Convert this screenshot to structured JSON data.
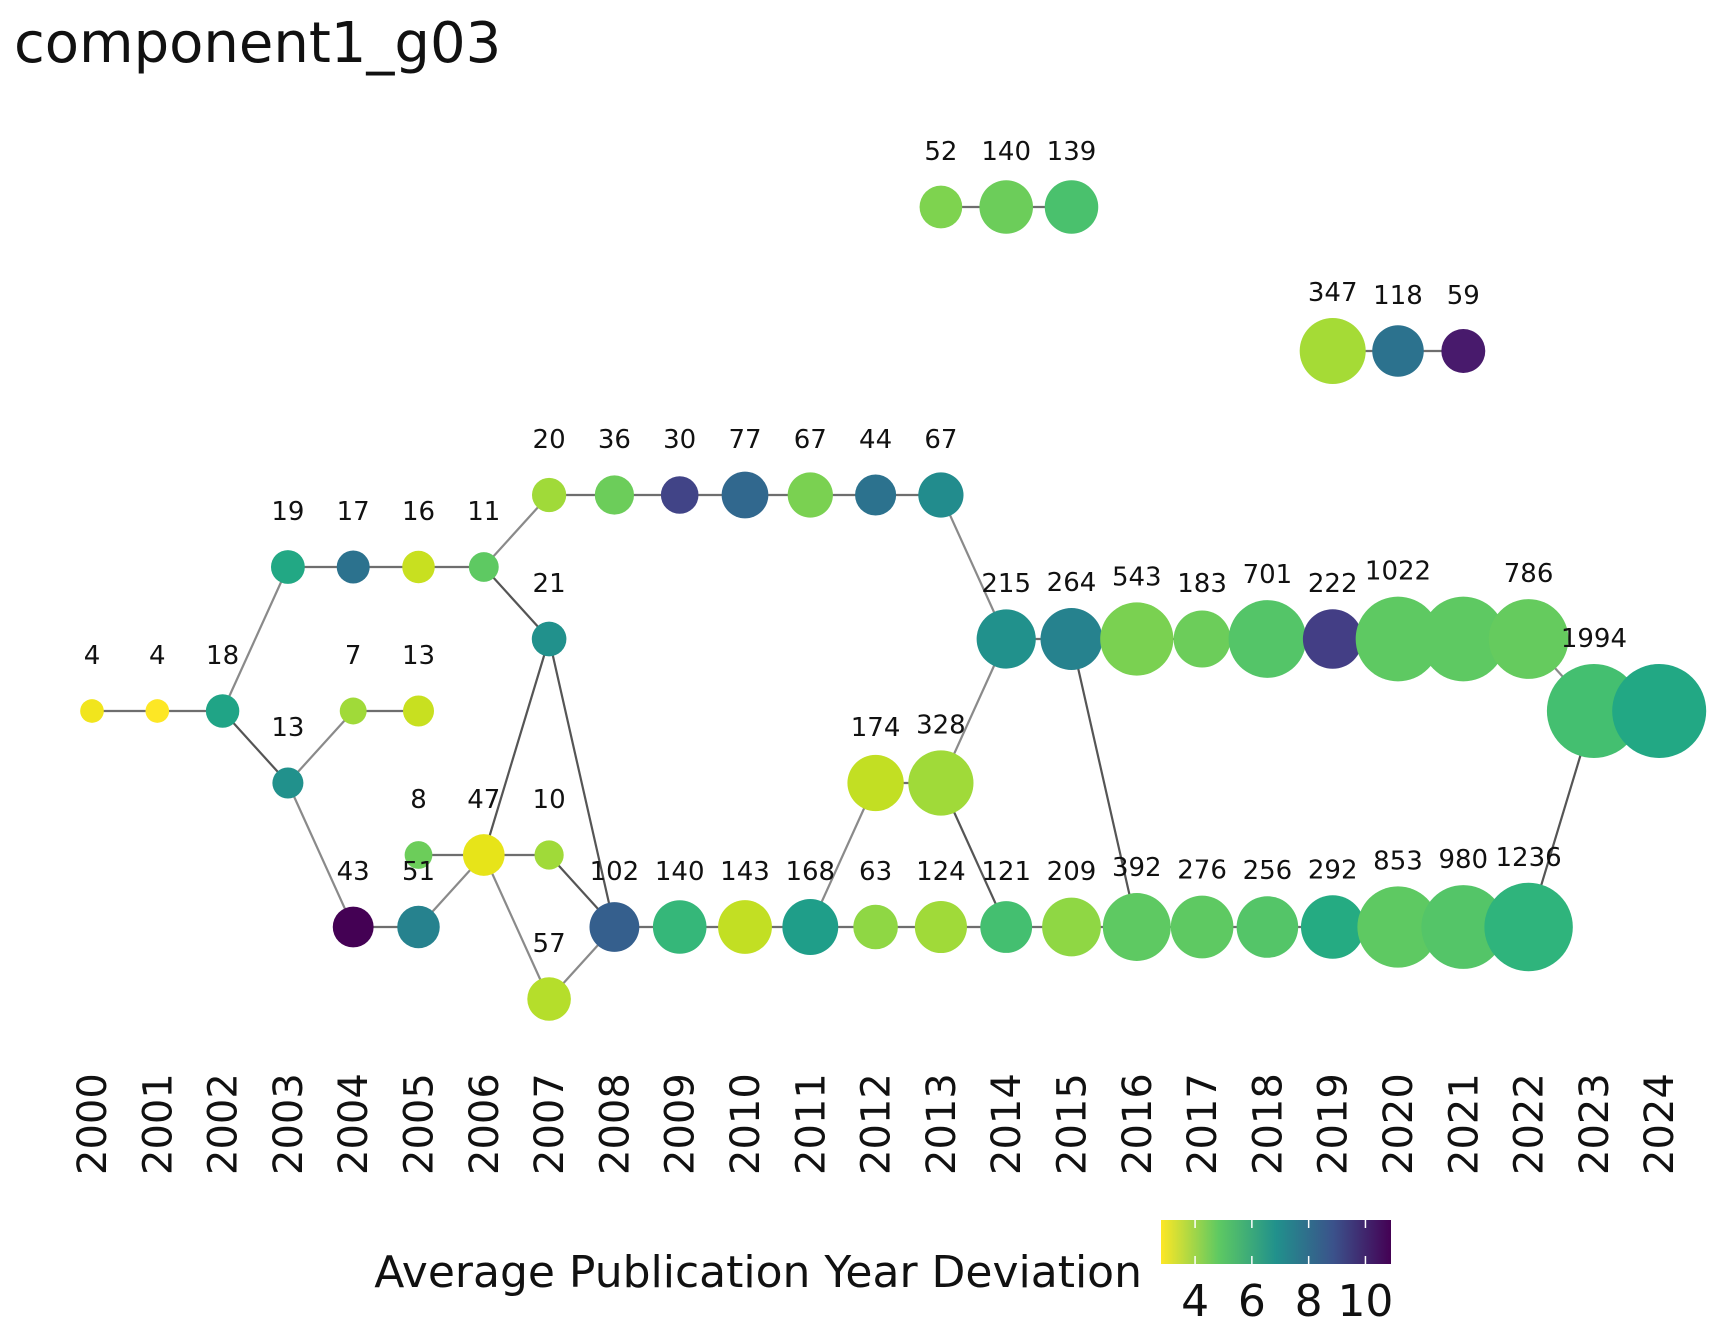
{
  "title": "component1_g03",
  "legend": {
    "title": "Average Publication Year Deviation",
    "ticks": [
      {
        "value": 4,
        "label": "4"
      },
      {
        "value": 6,
        "label": "6"
      },
      {
        "value": 8,
        "label": "8"
      },
      {
        "value": 10,
        "label": "10"
      }
    ],
    "range": [
      2.8,
      10.9
    ]
  },
  "palette": [
    "#fde725",
    "#5ec962",
    "#21918c",
    "#3b528b",
    "#440154"
  ],
  "years": [
    "2000",
    "2001",
    "2002",
    "2003",
    "2004",
    "2005",
    "2006",
    "2007",
    "2008",
    "2009",
    "2010",
    "2011",
    "2012",
    "2013",
    "2014",
    "2015",
    "2016",
    "2017",
    "2018",
    "2019",
    "2020",
    "2021",
    "2022",
    "2023",
    "2024"
  ],
  "rows": [
    "r1",
    "r2",
    "r3",
    "r4",
    "r5",
    "r6",
    "r7",
    "r8",
    "r9",
    "r10",
    "r11",
    "r12"
  ],
  "nodes": [
    {
      "id": "n2013a",
      "year": 2013,
      "row": "r1",
      "count": 52,
      "label": "52",
      "color": "#7ed34f"
    },
    {
      "id": "n2014a",
      "year": 2014,
      "row": "r1",
      "count": 140,
      "label": "140",
      "color": "#6ccd5a"
    },
    {
      "id": "n2015a",
      "year": 2015,
      "row": "r1",
      "count": 139,
      "label": "139",
      "color": "#4ac16d"
    },
    {
      "id": "n2019b",
      "year": 2019,
      "row": "r2",
      "count": 347,
      "label": "347",
      "color": "#a5db36"
    },
    {
      "id": "n2020b",
      "year": 2020,
      "row": "r2",
      "count": 118,
      "label": "118",
      "color": "#2c728e"
    },
    {
      "id": "n2021b",
      "year": 2021,
      "row": "r2",
      "count": 59,
      "label": "59",
      "color": "#481a6c"
    },
    {
      "id": "n2007c",
      "year": 2007,
      "row": "r3",
      "count": 20,
      "label": "20",
      "color": "#a0da39"
    },
    {
      "id": "n2008c",
      "year": 2008,
      "row": "r3",
      "count": 36,
      "label": "36",
      "color": "#6ccd5a"
    },
    {
      "id": "n2009c",
      "year": 2009,
      "row": "r3",
      "count": 30,
      "label": "30",
      "color": "#414487"
    },
    {
      "id": "n2010c",
      "year": 2010,
      "row": "r3",
      "count": 77,
      "label": "77",
      "color": "#31688e"
    },
    {
      "id": "n2011c",
      "year": 2011,
      "row": "r3",
      "count": 67,
      "label": "67",
      "color": "#7ad151"
    },
    {
      "id": "n2012c",
      "year": 2012,
      "row": "r3",
      "count": 44,
      "label": "44",
      "color": "#2c728e"
    },
    {
      "id": "n2013c",
      "year": 2013,
      "row": "r3",
      "count": 67,
      "label": "67",
      "color": "#228c8d"
    },
    {
      "id": "n2003d",
      "year": 2003,
      "row": "r4",
      "count": 19,
      "label": "19",
      "color": "#22a884"
    },
    {
      "id": "n2004d",
      "year": 2004,
      "row": "r4",
      "count": 17,
      "label": "17",
      "color": "#2c728e"
    },
    {
      "id": "n2005d",
      "year": 2005,
      "row": "r4",
      "count": 16,
      "label": "16",
      "color": "#c8e020"
    },
    {
      "id": "n2006d",
      "year": 2006,
      "row": "r4",
      "count": 11,
      "label": "11",
      "color": "#5ec962"
    },
    {
      "id": "n2007e",
      "year": 2007,
      "row": "r5",
      "count": 21,
      "label": "21",
      "color": "#21918c"
    },
    {
      "id": "n2014e",
      "year": 2014,
      "row": "r5",
      "count": 215,
      "label": "215",
      "color": "#21918c"
    },
    {
      "id": "n2015e",
      "year": 2015,
      "row": "r5",
      "count": 264,
      "label": "264",
      "color": "#26828e"
    },
    {
      "id": "n2016e",
      "year": 2016,
      "row": "r5",
      "count": 543,
      "label": "543",
      "color": "#7ad151"
    },
    {
      "id": "n2017e",
      "year": 2017,
      "row": "r5",
      "count": 183,
      "label": "183",
      "color": "#6ccd5a"
    },
    {
      "id": "n2018e",
      "year": 2018,
      "row": "r5",
      "count": 701,
      "label": "701",
      "color": "#54c568"
    },
    {
      "id": "n2019e",
      "year": 2019,
      "row": "r5",
      "count": 222,
      "label": "222",
      "color": "#433e85"
    },
    {
      "id": "n2020e",
      "year": 2020,
      "row": "r5",
      "count": 1022,
      "label": "1022",
      "color": "#5ec962"
    },
    {
      "id": "n2021e",
      "year": 2021,
      "row": "r5",
      "count": 1022,
      "label": "",
      "color": "#5ec962"
    },
    {
      "id": "n2022e",
      "year": 2022,
      "row": "r5",
      "count": 786,
      "label": "786",
      "color": "#65cb5e"
    },
    {
      "id": "n2000f",
      "year": 2000,
      "row": "r6",
      "count": 4,
      "label": "4",
      "color": "#f1e51d"
    },
    {
      "id": "n2001f",
      "year": 2001,
      "row": "r6",
      "count": 4,
      "label": "4",
      "color": "#fde725"
    },
    {
      "id": "n2002f",
      "year": 2002,
      "row": "r6",
      "count": 18,
      "label": "18",
      "color": "#20a486"
    },
    {
      "id": "n2004f",
      "year": 2004,
      "row": "r6",
      "count": 7,
      "label": "7",
      "color": "#a0da39"
    },
    {
      "id": "n2005f",
      "year": 2005,
      "row": "r6",
      "count": 13,
      "label": "13",
      "color": "#c8e020"
    },
    {
      "id": "n2023f",
      "year": 2023,
      "row": "r6",
      "count": 1994,
      "label": "1994",
      "color": "#44bf70"
    },
    {
      "id": "n2024f",
      "year": 2024,
      "row": "r6",
      "count": 1994,
      "label": "",
      "color": "#22a884"
    },
    {
      "id": "n2003g",
      "year": 2003,
      "row": "r7",
      "count": 13,
      "label": "13",
      "color": "#21918c"
    },
    {
      "id": "n2012g",
      "year": 2012,
      "row": "r7",
      "count": 174,
      "label": "174",
      "color": "#c2df23"
    },
    {
      "id": "n2013g",
      "year": 2013,
      "row": "r7",
      "count": 328,
      "label": "328",
      "color": "#a0da39"
    },
    {
      "id": "n2005h",
      "year": 2005,
      "row": "r8",
      "count": 8,
      "label": "8",
      "color": "#6ccd5a"
    },
    {
      "id": "n2006h",
      "year": 2006,
      "row": "r8",
      "count": 47,
      "label": "47",
      "color": "#e7e419"
    },
    {
      "id": "n2007h",
      "year": 2007,
      "row": "r8",
      "count": 10,
      "label": "10",
      "color": "#a0da39"
    },
    {
      "id": "n2004i",
      "year": 2004,
      "row": "r9",
      "count": 43,
      "label": "43",
      "color": "#440154"
    },
    {
      "id": "n2005i",
      "year": 2005,
      "row": "r9",
      "count": 51,
      "label": "51",
      "color": "#26828e"
    },
    {
      "id": "n2008i",
      "year": 2008,
      "row": "r9",
      "count": 102,
      "label": "102",
      "color": "#355f8d"
    },
    {
      "id": "n2009i",
      "year": 2009,
      "row": "r9",
      "count": 140,
      "label": "140",
      "color": "#35b779"
    },
    {
      "id": "n2010i",
      "year": 2010,
      "row": "r9",
      "count": 143,
      "label": "143",
      "color": "#c2df23"
    },
    {
      "id": "n2011i",
      "year": 2011,
      "row": "r9",
      "count": 168,
      "label": "168",
      "color": "#1f9e89"
    },
    {
      "id": "n2012i",
      "year": 2012,
      "row": "r9",
      "count": 63,
      "label": "63",
      "color": "#8fd744"
    },
    {
      "id": "n2013i",
      "year": 2013,
      "row": "r9",
      "count": 124,
      "label": "124",
      "color": "#a0da39"
    },
    {
      "id": "n2014i",
      "year": 2014,
      "row": "r9",
      "count": 121,
      "label": "121",
      "color": "#44bf70"
    },
    {
      "id": "n2015i",
      "year": 2015,
      "row": "r9",
      "count": 209,
      "label": "209",
      "color": "#8fd744"
    },
    {
      "id": "n2016i",
      "year": 2016,
      "row": "r9",
      "count": 392,
      "label": "392",
      "color": "#5ec962"
    },
    {
      "id": "n2017i",
      "year": 2017,
      "row": "r9",
      "count": 276,
      "label": "276",
      "color": "#5ec962"
    },
    {
      "id": "n2018i",
      "year": 2018,
      "row": "r9",
      "count": 256,
      "label": "256",
      "color": "#54c568"
    },
    {
      "id": "n2019i",
      "year": 2019,
      "row": "r9",
      "count": 292,
      "label": "292",
      "color": "#25ab82"
    },
    {
      "id": "n2020i",
      "year": 2020,
      "row": "r9",
      "count": 853,
      "label": "853",
      "color": "#5ec962"
    },
    {
      "id": "n2021i",
      "year": 2021,
      "row": "r9",
      "count": 980,
      "label": "980",
      "color": "#54c568"
    },
    {
      "id": "n2022i",
      "year": 2022,
      "row": "r9",
      "count": 1236,
      "label": "1236",
      "color": "#2fb47c"
    },
    {
      "id": "n2007j",
      "year": 2007,
      "row": "r10",
      "count": 57,
      "label": "57",
      "color": "#b5de2b"
    }
  ],
  "edges": [
    [
      "n2013a",
      "n2014a"
    ],
    [
      "n2014a",
      "n2015a"
    ],
    [
      "n2019b",
      "n2020b"
    ],
    [
      "n2020b",
      "n2021b"
    ],
    [
      "n2007c",
      "n2008c"
    ],
    [
      "n2008c",
      "n2009c"
    ],
    [
      "n2009c",
      "n2010c"
    ],
    [
      "n2010c",
      "n2011c"
    ],
    [
      "n2011c",
      "n2012c"
    ],
    [
      "n2012c",
      "n2013c"
    ],
    [
      "n2003d",
      "n2004d"
    ],
    [
      "n2004d",
      "n2005d"
    ],
    [
      "n2005d",
      "n2006d"
    ],
    [
      "n2006d",
      "n2007c"
    ],
    [
      "n2006d",
      "n2007e"
    ],
    [
      "n2002f",
      "n2003d"
    ],
    [
      "n2002f",
      "n2003g"
    ],
    [
      "n2000f",
      "n2001f"
    ],
    [
      "n2001f",
      "n2002f"
    ],
    [
      "n2003g",
      "n2004f"
    ],
    [
      "n2004f",
      "n2005f"
    ],
    [
      "n2003g",
      "n2004i"
    ],
    [
      "n2004i",
      "n2005i"
    ],
    [
      "n2005i",
      "n2006h"
    ],
    [
      "n2005h",
      "n2006h"
    ],
    [
      "n2006h",
      "n2007h"
    ],
    [
      "n2006h",
      "n2007e"
    ],
    [
      "n2006h",
      "n2007j"
    ],
    [
      "n2007h",
      "n2008i"
    ],
    [
      "n2007j",
      "n2008i"
    ],
    [
      "n2007e",
      "n2008i"
    ],
    [
      "n2008i",
      "n2009i"
    ],
    [
      "n2009i",
      "n2010i"
    ],
    [
      "n2010i",
      "n2011i"
    ],
    [
      "n2011i",
      "n2012i"
    ],
    [
      "n2012i",
      "n2013i"
    ],
    [
      "n2013i",
      "n2014i"
    ],
    [
      "n2014i",
      "n2015i"
    ],
    [
      "n2015i",
      "n2016i"
    ],
    [
      "n2016i",
      "n2017i"
    ],
    [
      "n2017i",
      "n2018i"
    ],
    [
      "n2018i",
      "n2019i"
    ],
    [
      "n2019i",
      "n2020i"
    ],
    [
      "n2020i",
      "n2021i"
    ],
    [
      "n2021i",
      "n2022i"
    ],
    [
      "n2011i",
      "n2012g"
    ],
    [
      "n2012g",
      "n2013g"
    ],
    [
      "n2013g",
      "n2014e"
    ],
    [
      "n2013g",
      "n2014i"
    ],
    [
      "n2013c",
      "n2014e"
    ],
    [
      "n2014e",
      "n2015e"
    ],
    [
      "n2015e",
      "n2016e"
    ],
    [
      "n2016e",
      "n2017e"
    ],
    [
      "n2017e",
      "n2018e"
    ],
    [
      "n2018e",
      "n2019e"
    ],
    [
      "n2019e",
      "n2020e"
    ],
    [
      "n2020e",
      "n2021e"
    ],
    [
      "n2021e",
      "n2022e"
    ],
    [
      "n2015e",
      "n2016i"
    ],
    [
      "n2022e",
      "n2023f"
    ],
    [
      "n2022i",
      "n2023f"
    ],
    [
      "n2023f",
      "n2024f"
    ]
  ]
}
